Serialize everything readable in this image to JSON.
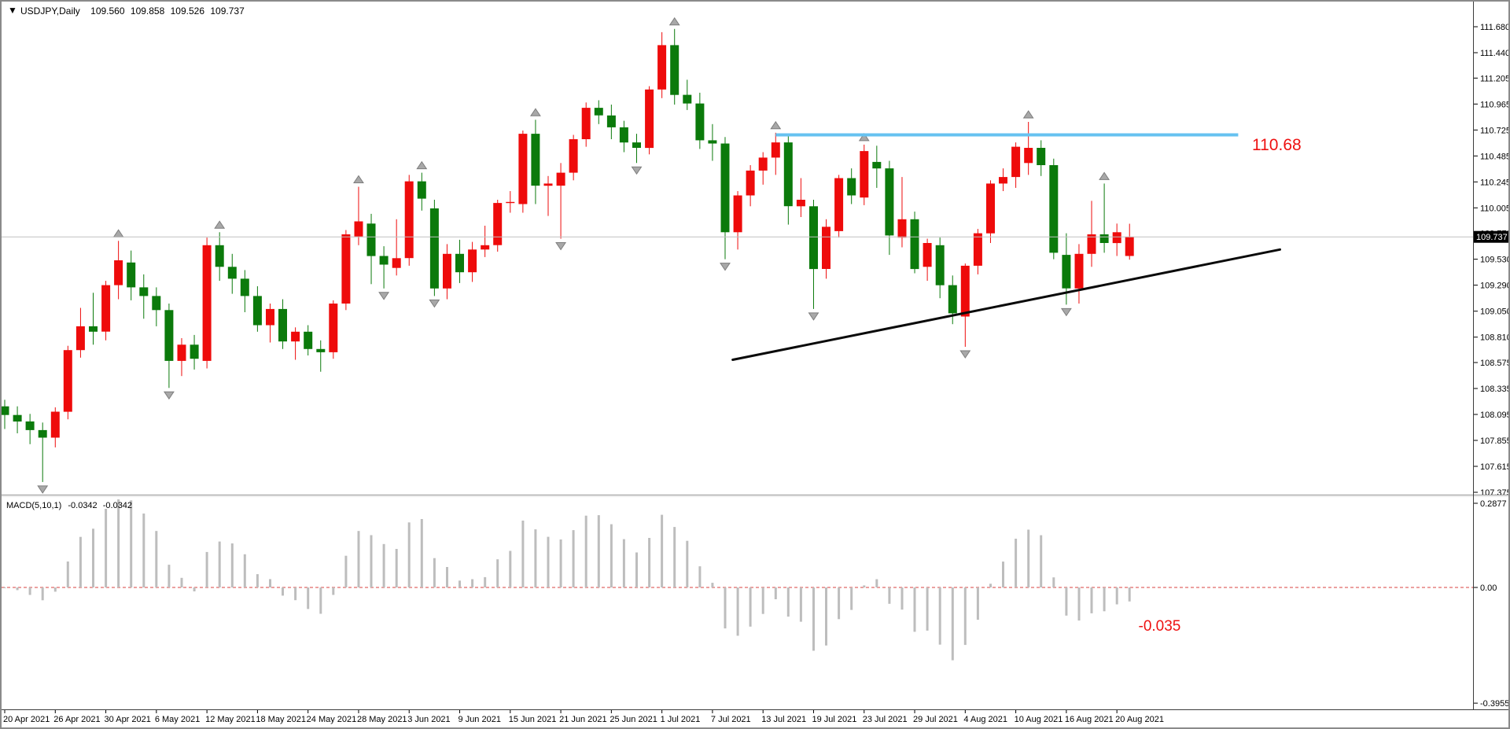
{
  "window": {
    "dropdown_icon": "▼",
    "symbol_period": "USDJPY,Daily",
    "quote_open": "109.560",
    "quote_high": "109.858",
    "quote_low": "109.526",
    "quote_close": "109.737"
  },
  "colors": {
    "bull": "#ee0b0b",
    "bear": "#0b7a0b",
    "macd_bar": "#bdbdbd",
    "zero_line": "#d94340",
    "resistance": "#66c2f0",
    "trend": "#0a0a0a",
    "current_price_line": "#c0c0c0",
    "current_price_box": "#000000",
    "fractal": "#a8a8a8",
    "annotation_red": "#ee1111"
  },
  "price_axis": {
    "ticks": [
      "111.680",
      "111.440",
      "111.205",
      "110.965",
      "110.725",
      "110.485",
      "110.245",
      "110.005",
      "109.770",
      "109.530",
      "109.290",
      "109.050",
      "108.810",
      "108.575",
      "108.335",
      "108.095",
      "107.855",
      "107.615",
      "107.375"
    ],
    "current_price": "109.737"
  },
  "macd_panel": {
    "label": "MACD(5,10,1)",
    "value": "-0.0342",
    "signal_value": "-0.0342",
    "axis_max": "0.2877",
    "axis_zero": "0.00",
    "axis_min": "-0.3955",
    "annotation": "-0.035"
  },
  "annotations": {
    "resistance_label": "110.68",
    "resistance_price": 110.68,
    "resistance_from_index": 61,
    "resistance_to_index": 97.6,
    "trend_from_index": 57.6,
    "trend_from_price": 108.6,
    "trend_to_index": 100.9,
    "trend_to_price": 109.62,
    "macd_note_index": 89.7,
    "macd_note_value": -0.129
  },
  "chart_data": {
    "type": "candlestick",
    "title": "USDJPY,Daily",
    "symbol": "USDJPY",
    "timeframe": "Daily",
    "ylabel": "",
    "xlabel": "",
    "y_range": [
      107.375,
      111.68
    ],
    "grid": false,
    "macd_params": [
      5,
      10,
      1
    ],
    "macd_range": [
      -0.3955,
      0.2877
    ],
    "x_tick_every": 4,
    "candles": [
      [
        "20 Apr 2021",
        108.17,
        108.23,
        107.96,
        108.09,
        ""
      ],
      [
        "21 Apr 2021",
        108.09,
        108.17,
        107.92,
        108.03,
        ""
      ],
      [
        "22 Apr 2021",
        108.03,
        108.1,
        107.82,
        107.95,
        ""
      ],
      [
        "23 Apr 2021",
        107.95,
        108.02,
        107.47,
        107.88,
        "down"
      ],
      [
        "26 Apr 2021",
        107.88,
        108.16,
        107.79,
        108.12,
        ""
      ],
      [
        "27 Apr 2021",
        108.12,
        108.73,
        108.05,
        108.69,
        ""
      ],
      [
        "28 Apr 2021",
        108.69,
        109.08,
        108.62,
        108.91,
        ""
      ],
      [
        "29 Apr 2021",
        108.91,
        109.22,
        108.74,
        108.86,
        ""
      ],
      [
        "30 Apr 2021",
        108.86,
        109.33,
        108.78,
        109.29,
        ""
      ],
      [
        "3 May 2021",
        109.29,
        109.7,
        109.16,
        109.52,
        "up"
      ],
      [
        "4 May 2021",
        109.5,
        109.61,
        109.15,
        109.27,
        ""
      ],
      [
        "5 May 2021",
        109.27,
        109.39,
        108.98,
        109.19,
        ""
      ],
      [
        "6 May 2021",
        109.19,
        109.27,
        108.91,
        109.06,
        ""
      ],
      [
        "7 May 2021",
        109.06,
        109.12,
        108.34,
        108.59,
        "down"
      ],
      [
        "10 May 2021",
        108.59,
        108.8,
        108.45,
        108.74,
        ""
      ],
      [
        "11 May 2021",
        108.74,
        108.83,
        108.51,
        108.61,
        ""
      ],
      [
        "12 May 2021",
        108.59,
        109.73,
        108.52,
        109.66,
        ""
      ],
      [
        "13 May 2021",
        109.66,
        109.78,
        109.33,
        109.46,
        "up"
      ],
      [
        "14 May 2021",
        109.46,
        109.58,
        109.21,
        109.35,
        ""
      ],
      [
        "17 May 2021",
        109.35,
        109.43,
        109.04,
        109.19,
        ""
      ],
      [
        "18 May 2021",
        109.19,
        109.28,
        108.86,
        108.92,
        ""
      ],
      [
        "19 May 2021",
        108.92,
        109.12,
        108.76,
        109.07,
        ""
      ],
      [
        "20 May 2021",
        109.07,
        109.16,
        108.7,
        108.77,
        ""
      ],
      [
        "21 May 2021",
        108.77,
        108.9,
        108.6,
        108.86,
        ""
      ],
      [
        "24 May 2021",
        108.86,
        108.92,
        108.64,
        108.7,
        ""
      ],
      [
        "25 May 2021",
        108.7,
        108.78,
        108.49,
        108.67,
        ""
      ],
      [
        "26 May 2021",
        108.67,
        109.15,
        108.61,
        109.12,
        ""
      ],
      [
        "27 May 2021",
        109.12,
        109.8,
        109.06,
        109.76,
        ""
      ],
      [
        "28 May 2021",
        109.74,
        110.2,
        109.66,
        109.88,
        "up"
      ],
      [
        "31 May 2021",
        109.86,
        109.95,
        109.3,
        109.56,
        ""
      ],
      [
        "1 Jun 2021",
        109.56,
        109.65,
        109.26,
        109.48,
        "down"
      ],
      [
        "2 Jun 2021",
        109.45,
        109.9,
        109.38,
        109.54,
        ""
      ],
      [
        "3 Jun 2021",
        109.54,
        110.31,
        109.47,
        110.25,
        ""
      ],
      [
        "4 Jun 2021",
        110.25,
        110.33,
        109.98,
        110.09,
        "up"
      ],
      [
        "7 Jun 2021",
        110.0,
        110.08,
        109.19,
        109.26,
        "down"
      ],
      [
        "8 Jun 2021",
        109.26,
        109.67,
        109.16,
        109.58,
        ""
      ],
      [
        "9 Jun 2021",
        109.58,
        109.71,
        109.31,
        109.41,
        ""
      ],
      [
        "10 Jun 2021",
        109.41,
        109.69,
        109.32,
        109.62,
        ""
      ],
      [
        "11 Jun 2021",
        109.62,
        109.84,
        109.55,
        109.66,
        ""
      ],
      [
        "14 Jun 2021",
        109.66,
        110.08,
        109.6,
        110.05,
        ""
      ],
      [
        "15 Jun 2021",
        110.05,
        110.16,
        109.96,
        110.06,
        ""
      ],
      [
        "16 Jun 2021",
        110.04,
        110.72,
        109.96,
        110.69,
        ""
      ],
      [
        "17 Jun 2021",
        110.69,
        110.82,
        110.04,
        110.21,
        "up"
      ],
      [
        "18 Jun 2021",
        110.21,
        110.3,
        109.93,
        110.23,
        ""
      ],
      [
        "21 Jun 2021",
        110.21,
        110.42,
        109.72,
        110.33,
        "down"
      ],
      [
        "22 Jun 2021",
        110.33,
        110.68,
        110.26,
        110.64,
        ""
      ],
      [
        "23 Jun 2021",
        110.64,
        110.98,
        110.57,
        110.93,
        ""
      ],
      [
        "24 Jun 2021",
        110.93,
        111.0,
        110.78,
        110.86,
        ""
      ],
      [
        "25 Jun 2021",
        110.86,
        110.96,
        110.64,
        110.75,
        ""
      ],
      [
        "28 Jun 2021",
        110.75,
        110.81,
        110.52,
        110.61,
        ""
      ],
      [
        "29 Jun 2021",
        110.61,
        110.69,
        110.42,
        110.56,
        "down"
      ],
      [
        "30 Jun 2021",
        110.56,
        111.13,
        110.5,
        111.1,
        ""
      ],
      [
        "1 Jul 2021",
        111.1,
        111.63,
        111.02,
        111.51,
        ""
      ],
      [
        "2 Jul 2021",
        111.51,
        111.66,
        110.96,
        111.05,
        "up"
      ],
      [
        "5 Jul 2021",
        111.05,
        111.19,
        110.91,
        110.97,
        ""
      ],
      [
        "6 Jul 2021",
        110.97,
        111.07,
        110.55,
        110.63,
        ""
      ],
      [
        "7 Jul 2021",
        110.63,
        110.78,
        110.44,
        110.6,
        ""
      ],
      [
        "8 Jul 2021",
        110.6,
        110.66,
        109.53,
        109.78,
        "down"
      ],
      [
        "9 Jul 2021",
        109.78,
        110.16,
        109.62,
        110.12,
        ""
      ],
      [
        "12 Jul 2021",
        110.12,
        110.4,
        110.02,
        110.35,
        ""
      ],
      [
        "13 Jul 2021",
        110.35,
        110.52,
        110.22,
        110.47,
        ""
      ],
      [
        "14 Jul 2021",
        110.47,
        110.7,
        110.31,
        110.61,
        "up"
      ],
      [
        "15 Jul 2021",
        110.61,
        110.67,
        109.85,
        110.02,
        ""
      ],
      [
        "16 Jul 2021",
        110.02,
        110.28,
        109.92,
        110.08,
        ""
      ],
      [
        "19 Jul 2021",
        110.02,
        110.08,
        109.07,
        109.44,
        "down"
      ],
      [
        "20 Jul 2021",
        109.44,
        109.9,
        109.35,
        109.83,
        ""
      ],
      [
        "21 Jul 2021",
        109.79,
        110.31,
        109.73,
        110.28,
        ""
      ],
      [
        "22 Jul 2021",
        110.28,
        110.37,
        110.04,
        110.12,
        ""
      ],
      [
        "23 Jul 2021",
        110.1,
        110.59,
        110.03,
        110.53,
        "up"
      ],
      [
        "26 Jul 2021",
        110.43,
        110.58,
        110.19,
        110.37,
        ""
      ],
      [
        "27 Jul 2021",
        110.37,
        110.44,
        109.57,
        109.75,
        ""
      ],
      [
        "28 Jul 2021",
        109.73,
        110.29,
        109.64,
        109.9,
        ""
      ],
      [
        "29 Jul 2021",
        109.9,
        109.97,
        109.4,
        109.44,
        ""
      ],
      [
        "30 Jul 2021",
        109.46,
        109.72,
        109.33,
        109.68,
        ""
      ],
      [
        "2 Aug 2021",
        109.66,
        109.73,
        109.17,
        109.29,
        ""
      ],
      [
        "3 Aug 2021",
        109.29,
        109.38,
        108.93,
        109.03,
        ""
      ],
      [
        "4 Aug 2021",
        109.0,
        109.49,
        108.72,
        109.47,
        "down"
      ],
      [
        "5 Aug 2021",
        109.47,
        109.81,
        109.39,
        109.77,
        ""
      ],
      [
        "6 Aug 2021",
        109.77,
        110.26,
        109.68,
        110.23,
        ""
      ],
      [
        "9 Aug 2021",
        110.23,
        110.37,
        110.16,
        110.29,
        ""
      ],
      [
        "10 Aug 2021",
        110.29,
        110.61,
        110.19,
        110.57,
        ""
      ],
      [
        "11 Aug 2021",
        110.42,
        110.8,
        110.31,
        110.56,
        "up"
      ],
      [
        "12 Aug 2021",
        110.56,
        110.63,
        110.3,
        110.4,
        ""
      ],
      [
        "13 Aug 2021",
        110.4,
        110.46,
        109.53,
        109.59,
        ""
      ],
      [
        "16 Aug 2021",
        109.57,
        109.77,
        109.11,
        109.26,
        "down"
      ],
      [
        "17 Aug 2021",
        109.26,
        109.67,
        109.12,
        109.58,
        ""
      ],
      [
        "18 Aug 2021",
        109.58,
        110.07,
        109.46,
        109.76,
        ""
      ],
      [
        "19 Aug 2021",
        109.76,
        110.23,
        109.59,
        109.68,
        "up"
      ],
      [
        "20 Aug 2021",
        109.68,
        109.86,
        109.56,
        109.78,
        ""
      ],
      [
        "23 Aug 2021",
        109.56,
        109.858,
        109.526,
        109.737,
        ""
      ]
    ]
  }
}
